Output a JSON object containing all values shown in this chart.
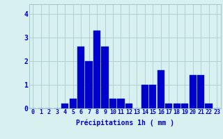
{
  "hours": [
    0,
    1,
    2,
    3,
    4,
    5,
    6,
    7,
    8,
    9,
    10,
    11,
    12,
    13,
    14,
    15,
    16,
    17,
    18,
    19,
    20,
    21,
    22,
    23
  ],
  "values": [
    0,
    0,
    0,
    0,
    0.2,
    0.4,
    2.6,
    2.0,
    3.3,
    2.6,
    0.4,
    0.4,
    0.2,
    0,
    1.0,
    1.0,
    1.6,
    0.2,
    0.2,
    0.2,
    1.4,
    1.4,
    0.2,
    0
  ],
  "bar_color": "#0000cc",
  "bar_edge_color": "#0033aa",
  "background_color": "#d8f0f0",
  "grid_color": "#aacaca",
  "text_color": "#0000cc",
  "xlabel": "Précipitations 1h ( mm )",
  "ylim": [
    0,
    4.4
  ],
  "yticks": [
    0,
    1,
    2,
    3,
    4
  ],
  "xlabel_fontsize": 7,
  "tick_fontsize": 6,
  "ytick_fontsize": 7
}
